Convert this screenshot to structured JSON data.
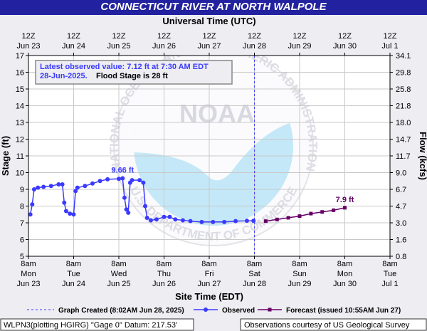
{
  "chart_data": {
    "type": "line",
    "title": "CONNECTICUT RIVER AT NORTH WALPOLE",
    "x2_title": "Universal Time (UTC)",
    "x_title": "Site Time (EDT)",
    "y_title": "Stage (ft)",
    "y2_title": "Flow (kcfs)",
    "xlim": [
      "Jun 23 08:00",
      "Jul 01 08:00"
    ],
    "ylim": [
      5,
      17
    ],
    "yticks": [
      5,
      6,
      7,
      8,
      9,
      10,
      11,
      12,
      13,
      14,
      15,
      16,
      17
    ],
    "y2ticks": [
      0.8,
      1.6,
      {
        "value": 3,
        "label": "3.0"
      },
      4.7,
      6.7,
      {
        "value": 9,
        "label": "9.0"
      },
      11.7,
      14.7,
      {
        "value": 18,
        "label": "18.0"
      },
      21.8,
      25.8,
      29.8,
      34.1
    ],
    "xticks": [
      {
        "value": "Jun 23 08:00",
        "label": [
          "8am",
          "Mon",
          "Jun 23"
        ]
      },
      {
        "value": "Jun 24 08:00",
        "label": [
          "8am",
          "Tue",
          "Jun 24"
        ]
      },
      {
        "value": "Jun 25 08:00",
        "label": [
          "8am",
          "Wed",
          "Jun 25"
        ]
      },
      {
        "value": "Jun 26 08:00",
        "label": [
          "8am",
          "Thu",
          "Jun 26"
        ]
      },
      {
        "value": "Jun 27 08:00",
        "label": [
          "8am",
          "Fri",
          "Jun 27"
        ]
      },
      {
        "value": "Jun 28 08:00",
        "label": [
          "8am",
          "Sat",
          "Jun 28"
        ]
      },
      {
        "value": "Jun 29 08:00",
        "label": [
          "8am",
          "Sun",
          "Jun 29"
        ]
      },
      {
        "value": "Jun 30 08:00",
        "label": [
          "8am",
          "Mon",
          "Jun 30"
        ]
      },
      {
        "value": "Jul 01 08:00",
        "label": [
          "8am",
          "Tue",
          "Jul 1"
        ]
      }
    ],
    "x2ticks": [
      {
        "value": "Jun 23 08:00",
        "label": [
          "12Z",
          "Jun 23"
        ]
      },
      {
        "value": "Jun 24 08:00",
        "label": [
          "12Z",
          "Jun 24"
        ]
      },
      {
        "value": "Jun 25 08:00",
        "label": [
          "12Z",
          "Jun 25"
        ]
      },
      {
        "value": "Jun 26 08:00",
        "label": [
          "12Z",
          "Jun 26"
        ]
      },
      {
        "value": "Jun 27 08:00",
        "label": [
          "12Z",
          "Jun 27"
        ]
      },
      {
        "value": "Jun 28 08:00",
        "label": [
          "12Z",
          "Jun 28"
        ]
      },
      {
        "value": "Jun 29 08:00",
        "label": [
          "12Z",
          "Jun 29"
        ]
      },
      {
        "value": "Jun 30 08:00",
        "label": [
          "12Z",
          "Jun 30"
        ]
      },
      {
        "value": "Jul 01 08:00",
        "label": [
          "12Z",
          "Jul 1"
        ]
      }
    ],
    "grid": true,
    "series": [
      {
        "name": "Observed",
        "color": "#3a3aff",
        "marker": "circle",
        "x": [
          "Jun 23 09:00",
          "Jun 23 10:00",
          "Jun 23 11:00",
          "Jun 23 13:00",
          "Jun 23 16:00",
          "Jun 23 20:00",
          "Jun 24 00:00",
          "Jun 24 02:00",
          "Jun 24 03:00",
          "Jun 24 04:00",
          "Jun 24 06:00",
          "Jun 24 08:00",
          "Jun 24 09:00",
          "Jun 24 10:00",
          "Jun 24 14:00",
          "Jun 24 18:00",
          "Jun 24 22:00",
          "Jun 25 02:00",
          "Jun 25 08:00",
          "Jun 25 10:00",
          "Jun 25 11:00",
          "Jun 25 12:00",
          "Jun 25 13:00",
          "Jun 25 14:00",
          "Jun 25 15:00",
          "Jun 25 19:00",
          "Jun 25 21:00",
          "Jun 25 22:00",
          "Jun 25 23:00",
          "Jun 26 01:00",
          "Jun 26 04:00",
          "Jun 26 08:00",
          "Jun 26 11:00",
          "Jun 26 14:00",
          "Jun 26 18:00",
          "Jun 26 22:00",
          "Jun 27 04:00",
          "Jun 27 10:00",
          "Jun 27 16:00",
          "Jun 27 22:00",
          "Jun 28 04:00",
          "Jun 28 07:30"
        ],
        "values": [
          7.5,
          8.1,
          9.0,
          9.1,
          9.15,
          9.2,
          9.3,
          9.3,
          8.2,
          7.7,
          7.55,
          7.5,
          8.9,
          9.1,
          9.2,
          9.35,
          9.5,
          9.6,
          9.63,
          9.66,
          8.5,
          7.8,
          7.6,
          9.4,
          9.55,
          9.55,
          9.4,
          8.0,
          7.3,
          7.15,
          7.2,
          7.35,
          7.35,
          7.2,
          7.15,
          7.1,
          7.05,
          7.05,
          7.05,
          7.1,
          7.12,
          7.12
        ]
      },
      {
        "name": "Forecast (issued 10:55AM Jun 27)",
        "color": "#660066",
        "marker": "square",
        "x": [
          "Jun 28 14:00",
          "Jun 28 20:00",
          "Jun 29 02:00",
          "Jun 29 08:00",
          "Jun 29 14:00",
          "Jun 29 20:00",
          "Jun 30 02:00",
          "Jun 30 08:00"
        ],
        "values": [
          7.1,
          7.2,
          7.3,
          7.4,
          7.55,
          7.65,
          7.75,
          7.9
        ]
      }
    ],
    "annotations": [
      {
        "text": "9.66 ft",
        "x": "Jun 25 10:00",
        "y": 9.66,
        "color": "#3a3aff"
      },
      {
        "text": "7.9 ft",
        "x": "Jun 30 08:00",
        "y": 7.9,
        "color": "#660066"
      }
    ],
    "graph_created": {
      "label": "Graph Created (8:02AM Jun 28, 2025)",
      "x": "Jun 28 08:02"
    },
    "info": {
      "latest": "Latest observed value: 7.12 ft at 7:30 AM EDT",
      "date": "28-Jun-2025.",
      "flood": "Flood Stage is 28 ft"
    },
    "watermark": {
      "text": "NOAA",
      "top": "NATIONAL OCEANIC AND ATMOSPHERIC ADMINISTRATION",
      "bottom": "U.S. DEPARTMENT OF COMMERCE"
    },
    "footer_left": "WLPN3(plotting HGIRG) \"Gage 0\" Datum: 217.53'",
    "footer_right": "Observations courtesy of US Geological Survey"
  }
}
